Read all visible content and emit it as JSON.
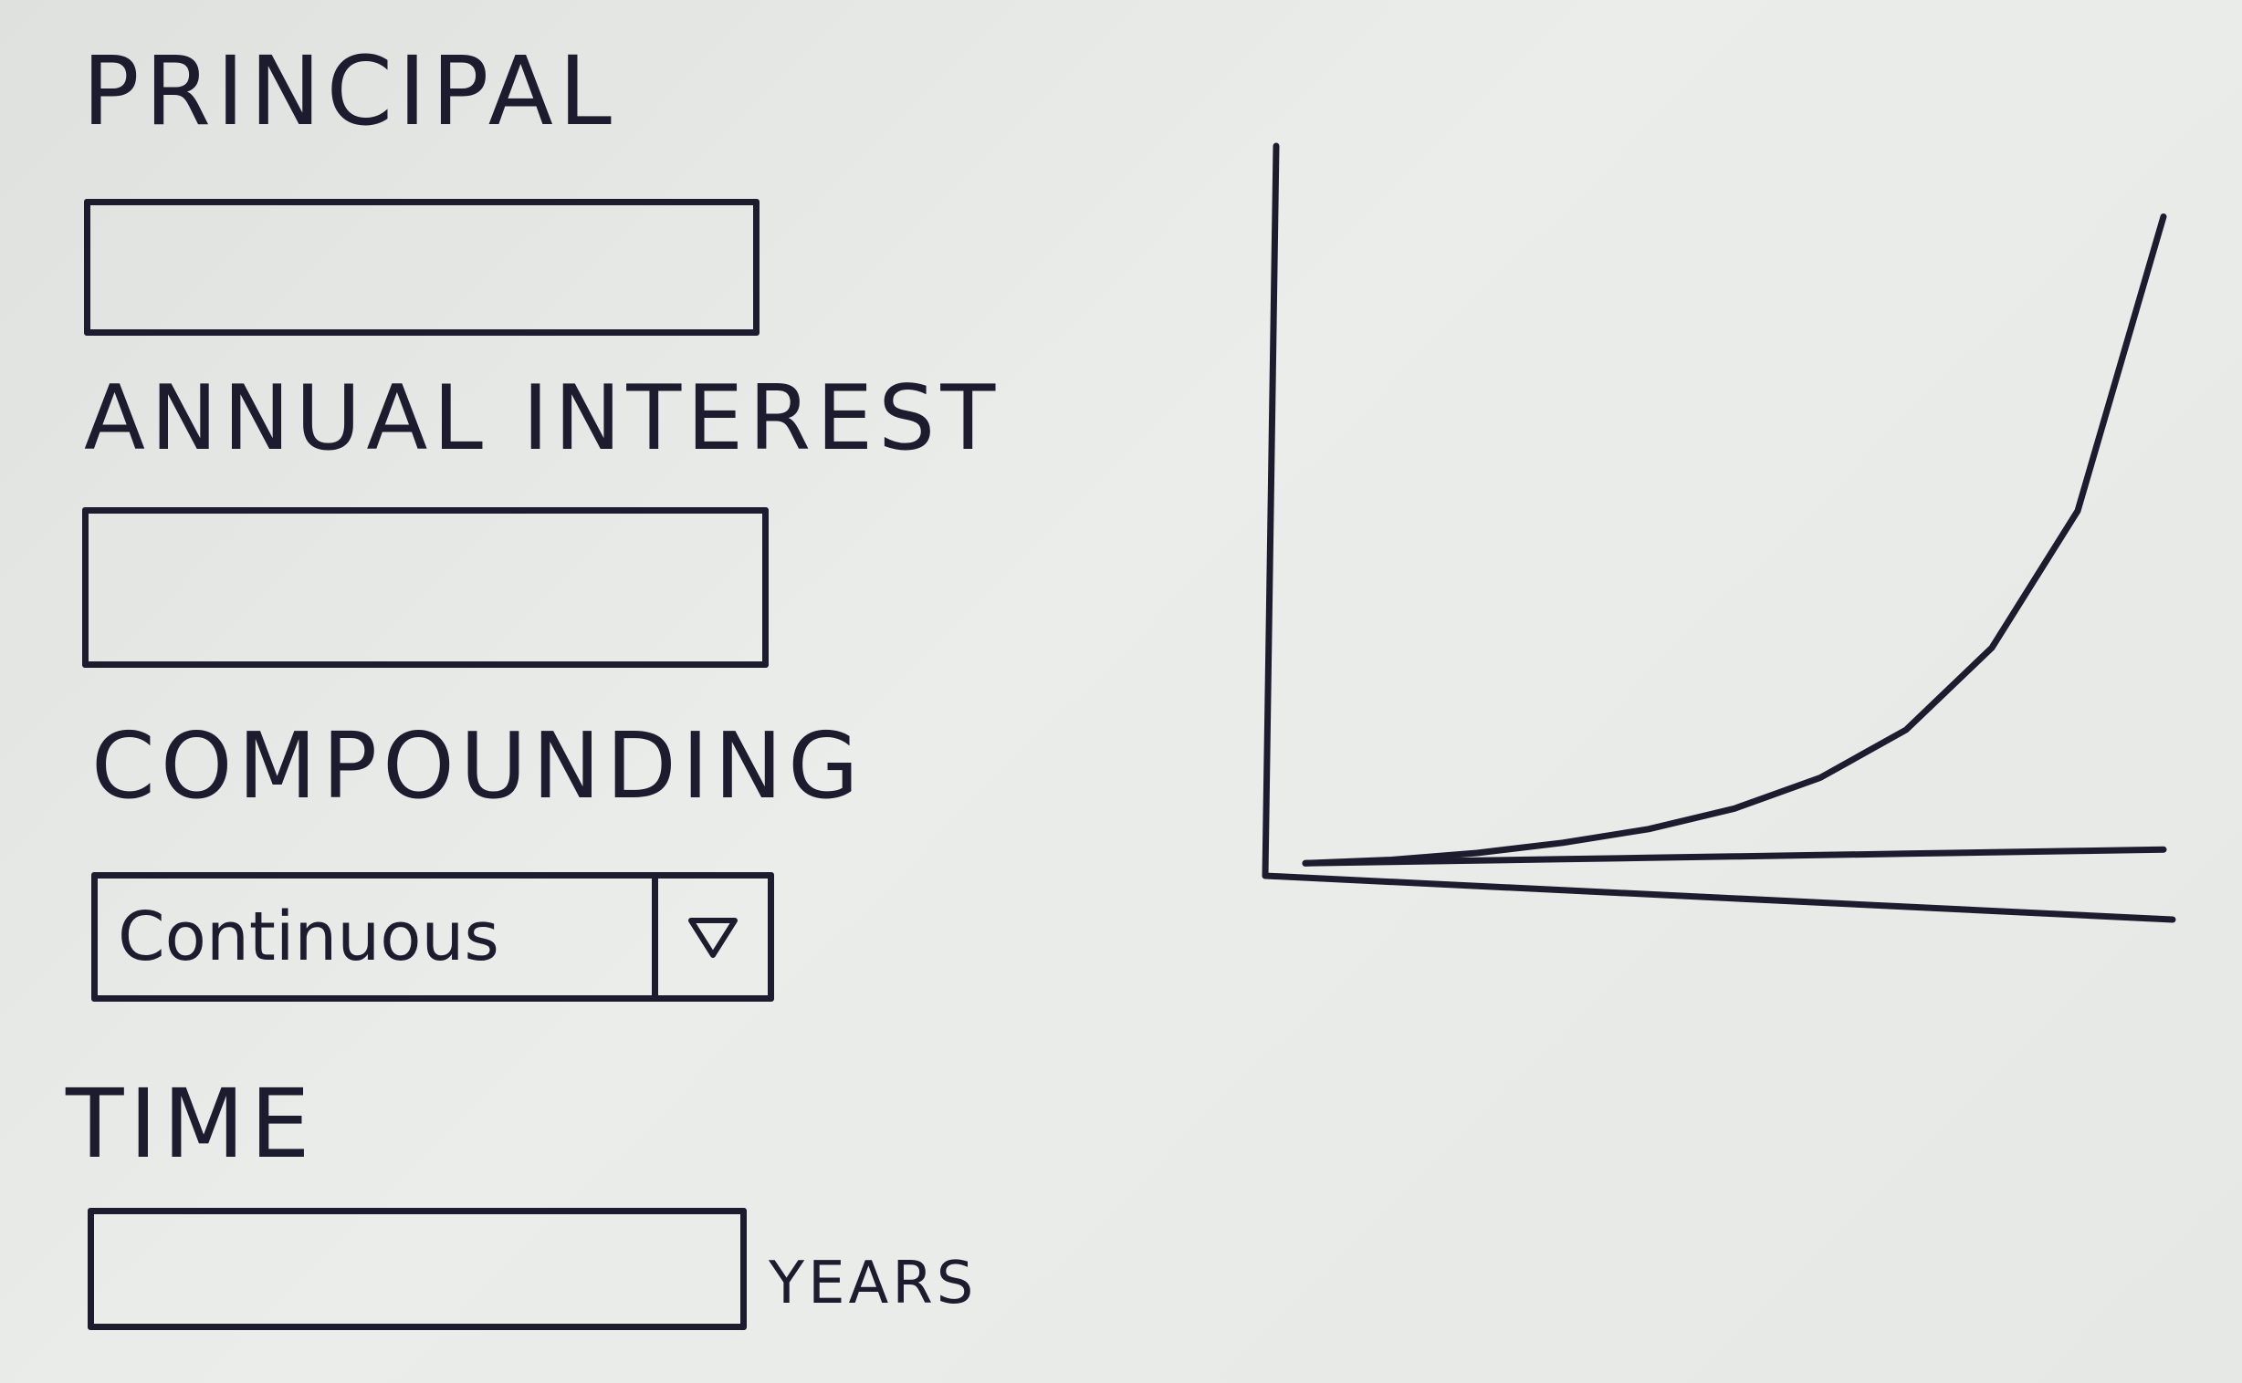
{
  "form": {
    "principal": {
      "label": "PRINCIPAL",
      "value": ""
    },
    "annual_interest": {
      "label": "ANNUAL INTEREST",
      "value": ""
    },
    "compounding": {
      "label": "COMPOUNDING",
      "selected": "Continuous"
    },
    "time": {
      "label": "TIME",
      "value": "",
      "units": "YEARS"
    }
  },
  "icons": {
    "dropdown": "triangle-down-icon"
  },
  "colors": {
    "ink": "#1c1c2e",
    "paper": "#e4e6e4"
  },
  "chart_data": {
    "type": "line",
    "title": "",
    "xlabel": "",
    "ylabel": "",
    "series": [
      {
        "values": [
          0.05,
          0.1,
          0.2,
          0.35,
          0.55,
          0.85,
          1.3,
          2.0,
          3.2,
          5.2,
          9.5
        ]
      },
      {
        "values": [
          0.05,
          0.07,
          0.09,
          0.11,
          0.13,
          0.15,
          0.17,
          0.19,
          0.21,
          0.23,
          0.25
        ]
      }
    ],
    "x": [
      0,
      1,
      2,
      3,
      4,
      5,
      6,
      7,
      8,
      9,
      10
    ],
    "ylim": [
      0,
      10
    ],
    "grid": false
  }
}
